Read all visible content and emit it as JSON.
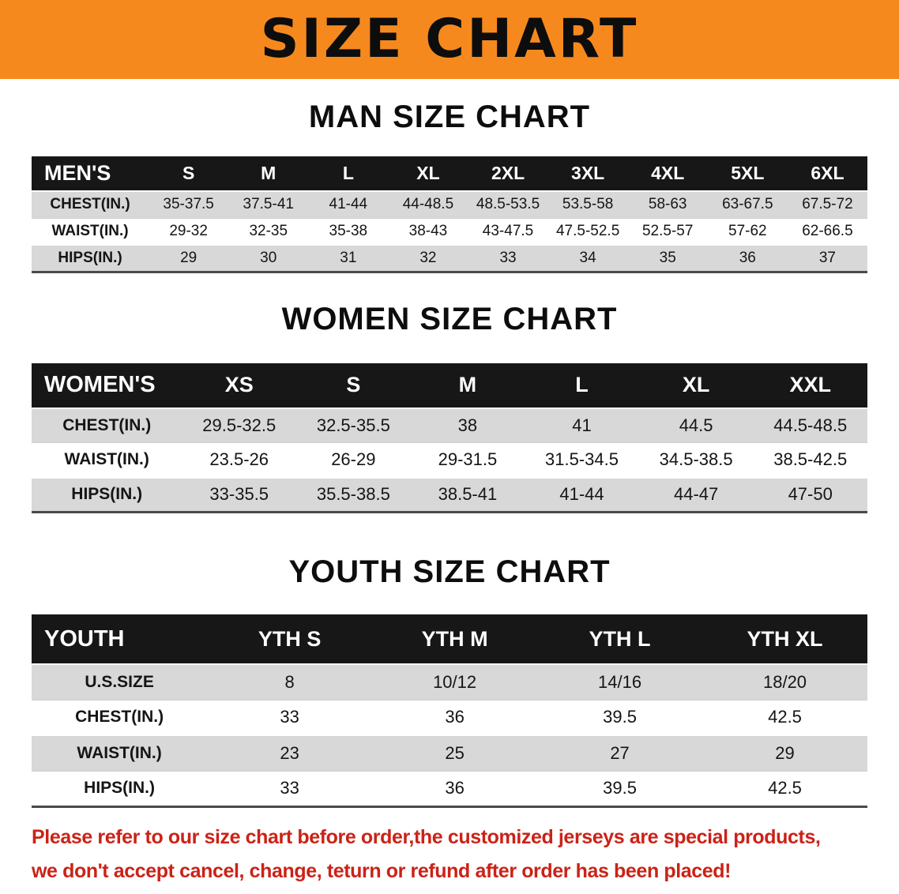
{
  "banner": {
    "title": "SIZE CHART",
    "bg_color": "#F6891E",
    "title_color": "#0D0D0D"
  },
  "colors": {
    "table_header_bg": "#171717",
    "table_header_text": "#FFFFFF",
    "row_stripe_gray": "#D8D8D8",
    "disclaimer_red": "#CB2217"
  },
  "chart_data": [
    {
      "type": "table",
      "title": "MAN SIZE CHART",
      "columns": [
        "MEN'S",
        "S",
        "M",
        "L",
        "XL",
        "2XL",
        "3XL",
        "4XL",
        "5XL",
        "6XL"
      ],
      "rows": [
        [
          "CHEST(IN.)",
          "35-37.5",
          "37.5-41",
          "41-44",
          "44-48.5",
          "48.5-53.5",
          "53.5-58",
          "58-63",
          "63-67.5",
          "67.5-72"
        ],
        [
          "WAIST(IN.)",
          "29-32",
          "32-35",
          "35-38",
          "38-43",
          "43-47.5",
          "47.5-52.5",
          "52.5-57",
          "57-62",
          "62-66.5"
        ],
        [
          "HIPS(IN.)",
          "29",
          "30",
          "31",
          "32",
          "33",
          "34",
          "35",
          "36",
          "37"
        ]
      ]
    },
    {
      "type": "table",
      "title": "WOMEN SIZE CHART",
      "columns": [
        "WOMEN'S",
        "XS",
        "S",
        "M",
        "L",
        "XL",
        "XXL"
      ],
      "rows": [
        [
          "CHEST(IN.)",
          "29.5-32.5",
          "32.5-35.5",
          "38",
          "41",
          "44.5",
          "44.5-48.5"
        ],
        [
          "WAIST(IN.)",
          "23.5-26",
          "26-29",
          "29-31.5",
          "31.5-34.5",
          "34.5-38.5",
          "38.5-42.5"
        ],
        [
          "HIPS(IN.)",
          "33-35.5",
          "35.5-38.5",
          "38.5-41",
          "41-44",
          "44-47",
          "47-50"
        ]
      ]
    },
    {
      "type": "table",
      "title": "YOUTH SIZE CHART",
      "columns": [
        "YOUTH",
        "YTH S",
        "YTH M",
        "YTH L",
        "YTH XL"
      ],
      "rows": [
        [
          "U.S.SIZE",
          "8",
          "10/12",
          "14/16",
          "18/20"
        ],
        [
          "CHEST(IN.)",
          "33",
          "36",
          "39.5",
          "42.5"
        ],
        [
          "WAIST(IN.)",
          "23",
          "25",
          "27",
          "29"
        ],
        [
          "HIPS(IN.)",
          "33",
          "36",
          "39.5",
          "42.5"
        ]
      ]
    }
  ],
  "disclaimer": {
    "line1": "Please refer to our size chart before order,the customized jerseys are special products,",
    "line2": "we don't accept cancel, change, teturn or refund after order has been placed!",
    "color": "#CB2217"
  }
}
